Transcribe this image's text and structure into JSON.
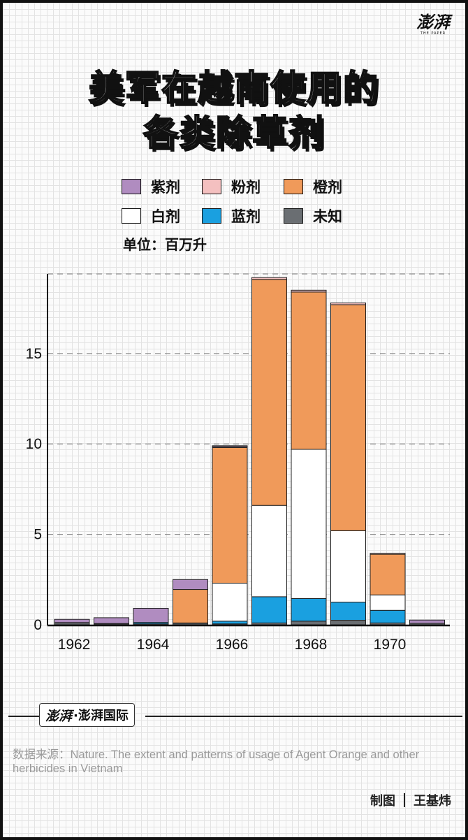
{
  "logo": {
    "cn": "澎湃",
    "en": "THE PAPER"
  },
  "title": {
    "line1": "美军在越南使用的",
    "line2": "各类除草剂"
  },
  "legend": [
    {
      "name": "紫剂",
      "color": "#b08cc0"
    },
    {
      "name": "粉剂",
      "color": "#f4c0c0"
    },
    {
      "name": "橙剂",
      "color": "#f09a5a"
    },
    {
      "name": "白剂",
      "color": "#ffffff"
    },
    {
      "name": "蓝剂",
      "color": "#1aa0e0"
    },
    {
      "name": "未知",
      "color": "#6a6e72"
    }
  ],
  "unit": "单位：百万升",
  "chart_data": {
    "type": "bar",
    "stacked": true,
    "x": [
      1962,
      1963,
      1964,
      1965,
      1966,
      1967,
      1968,
      1969,
      1970,
      1971
    ],
    "x_tick_labels": [
      "1962",
      "1964",
      "1966",
      "1968",
      "1970"
    ],
    "y_ticks": [
      0,
      5,
      10,
      15
    ],
    "ylim": [
      0,
      19.4
    ],
    "grid": "horizontal dashed",
    "series": [
      {
        "name": "未知",
        "color": "#6a6e72",
        "values": [
          0.1,
          0.05,
          0.05,
          0.08,
          0.05,
          0.1,
          0.2,
          0.25,
          0.1,
          0.08
        ]
      },
      {
        "name": "蓝剂",
        "color": "#1aa0e0",
        "values": [
          0.02,
          0.02,
          0.08,
          0.02,
          0.15,
          1.45,
          1.25,
          1.0,
          0.7,
          0.0
        ]
      },
      {
        "name": "白剂",
        "color": "#ffffff",
        "values": [
          0.0,
          0.0,
          0.0,
          0.0,
          2.1,
          5.05,
          8.25,
          3.95,
          0.85,
          0.0
        ]
      },
      {
        "name": "橙剂",
        "color": "#f09a5a",
        "values": [
          0.0,
          0.0,
          0.0,
          1.85,
          7.5,
          12.5,
          8.7,
          12.5,
          2.25,
          0.0
        ]
      },
      {
        "name": "粉剂",
        "color": "#f4c0c0",
        "values": [
          0.0,
          0.0,
          0.0,
          0.0,
          0.05,
          0.1,
          0.1,
          0.1,
          0.05,
          0.0
        ]
      },
      {
        "name": "紫剂",
        "color": "#b08cc0",
        "values": [
          0.18,
          0.32,
          0.78,
          0.55,
          0.05,
          0.0,
          0.0,
          0.0,
          0.0,
          0.18
        ]
      }
    ]
  },
  "brand": {
    "logo": "澎湃",
    "text": "·澎湃国际"
  },
  "source": "数据来源：Nature. The extent and patterns of usage of Agent Orange and other herbicides in Vietnam",
  "credit": {
    "label": "制图",
    "author": "王基炜"
  }
}
